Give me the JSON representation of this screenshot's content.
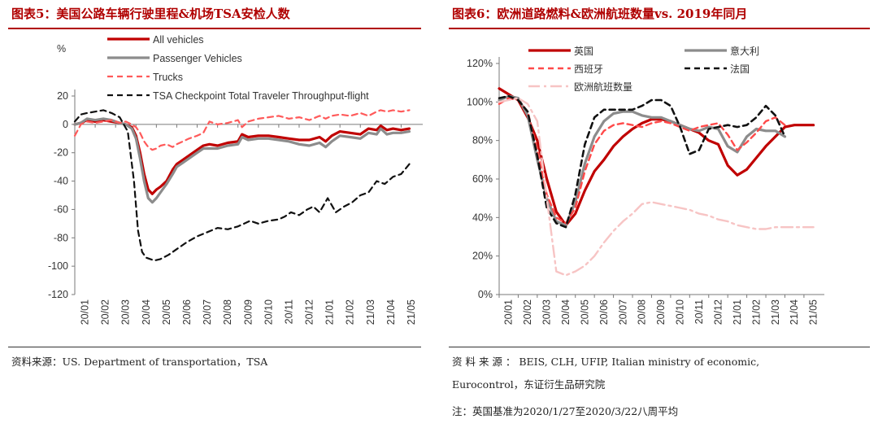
{
  "left": {
    "title": "图表5：美国公路车辆行驶里程&机场TSA安检人数",
    "unit_label": "%",
    "source": "资料来源：US. Department of transportation，TSA"
  },
  "right": {
    "title": "图表6：欧洲道路燃料&欧洲航班数量vs. 2019年同月",
    "source_line1": "资 料 来 源 ： BEIS, CLH, UFIP, Italian ministry of economic,",
    "source_line2": "Eurocontrol，东证衍生品研究院",
    "note": "注：英国基准为2020/1/27至2020/3/22八周平均"
  },
  "chart_data": [
    {
      "type": "line",
      "title": "图表5：美国公路车辆行驶里程&机场TSA安检人数",
      "ylabel": "%",
      "ylim": [
        -120,
        20
      ],
      "yticks": [
        20,
        0,
        -20,
        -40,
        -60,
        -80,
        -100,
        -120
      ],
      "x_ticklabels": [
        "20/01",
        "20/02",
        "20/03",
        "20/04",
        "20/05",
        "20/06",
        "20/07",
        "20/08",
        "20/09",
        "20/10",
        "20/11",
        "20/12",
        "21/01",
        "21/02",
        "21/03",
        "21/04",
        "21/05"
      ],
      "xlim": [
        0,
        16.9
      ],
      "legend_position": "top",
      "series": [
        {
          "name": "All vehicles",
          "color": "#c00000",
          "style": "solid",
          "width": 3.2,
          "x": [
            0,
            0.3,
            0.6,
            1.0,
            1.4,
            1.8,
            2.2,
            2.5,
            2.8,
            3.0,
            3.2,
            3.4,
            3.6,
            3.8,
            4.0,
            4.2,
            4.5,
            4.8,
            5.0,
            5.3,
            5.6,
            6.0,
            6.3,
            6.6,
            7.0,
            7.5,
            8.0,
            8.2,
            8.5,
            9.0,
            9.5,
            10.0,
            10.5,
            11.0,
            11.5,
            12.0,
            12.3,
            12.6,
            13.0,
            13.5,
            14.0,
            14.4,
            14.8,
            15.0,
            15.3,
            15.6,
            16.0,
            16.4
          ],
          "y": [
            0,
            1,
            3,
            2,
            3,
            2,
            1,
            0,
            -2,
            -8,
            -20,
            -35,
            -46,
            -49,
            -46,
            -44,
            -40,
            -32,
            -28,
            -25,
            -22,
            -18,
            -15,
            -14,
            -15,
            -13,
            -12,
            -7,
            -9,
            -8,
            -8,
            -9,
            -10,
            -11,
            -11,
            -9,
            -12,
            -8,
            -5,
            -6,
            -7,
            -3,
            -4,
            -1,
            -4,
            -3,
            -4,
            -3
          ]
        },
        {
          "name": "Passenger Vehicles",
          "color": "#8c8c8c",
          "style": "solid",
          "width": 3.2,
          "x": [
            0,
            0.3,
            0.6,
            1.0,
            1.4,
            1.8,
            2.2,
            2.5,
            2.8,
            3.0,
            3.2,
            3.4,
            3.6,
            3.8,
            4.0,
            4.2,
            4.5,
            4.8,
            5.0,
            5.3,
            5.6,
            6.0,
            6.3,
            6.6,
            7.0,
            7.5,
            8.0,
            8.2,
            8.5,
            9.0,
            9.5,
            10.0,
            10.5,
            11.0,
            11.5,
            12.0,
            12.3,
            12.6,
            13.0,
            13.5,
            14.0,
            14.4,
            14.8,
            15.0,
            15.3,
            15.6,
            16.0,
            16.4
          ],
          "y": [
            0,
            1,
            4,
            3,
            4,
            3,
            1,
            0,
            -3,
            -10,
            -24,
            -40,
            -52,
            -55,
            -52,
            -48,
            -42,
            -35,
            -30,
            -27,
            -24,
            -20,
            -17,
            -17,
            -17,
            -15,
            -14,
            -9,
            -11,
            -10,
            -10,
            -11,
            -12,
            -14,
            -15,
            -13,
            -16,
            -12,
            -8,
            -9,
            -10,
            -6,
            -7,
            -3,
            -7,
            -6,
            -6,
            -5
          ]
        },
        {
          "name": "Trucks",
          "color": "#ff5a5a",
          "style": "dashed",
          "width": 2.2,
          "x": [
            0,
            0.3,
            0.6,
            1.0,
            1.4,
            1.8,
            2.2,
            2.5,
            2.8,
            3.0,
            3.2,
            3.4,
            3.6,
            3.8,
            4.0,
            4.2,
            4.5,
            4.8,
            5.0,
            5.3,
            5.6,
            6.0,
            6.3,
            6.6,
            7.0,
            7.5,
            8.0,
            8.2,
            8.5,
            9.0,
            9.5,
            10.0,
            10.5,
            11.0,
            11.5,
            12.0,
            12.3,
            12.6,
            13.0,
            13.5,
            14.0,
            14.4,
            14.8,
            15.0,
            15.3,
            15.6,
            16.0,
            16.4
          ],
          "y": [
            -8,
            0,
            2,
            1,
            2,
            3,
            1,
            2,
            0,
            -2,
            -6,
            -12,
            -16,
            -18,
            -17,
            -15,
            -14,
            -16,
            -14,
            -12,
            -10,
            -8,
            -6,
            2,
            0,
            1,
            3,
            -2,
            2,
            4,
            5,
            6,
            4,
            5,
            3,
            6,
            4,
            6,
            7,
            6,
            8,
            6,
            9,
            10,
            9,
            10,
            9,
            10
          ]
        },
        {
          "name": "TSA Checkpoint Total Traveler Throughput-flight",
          "color": "#111111",
          "style": "dashed",
          "width": 2.2,
          "x": [
            0,
            0.3,
            0.6,
            1.0,
            1.4,
            1.8,
            2.2,
            2.6,
            2.9,
            3.1,
            3.3,
            3.5,
            3.7,
            3.9,
            4.2,
            4.6,
            5.0,
            5.5,
            6.0,
            6.5,
            7.0,
            7.5,
            8.0,
            8.3,
            8.6,
            9.0,
            9.5,
            10.0,
            10.3,
            10.6,
            11.0,
            11.4,
            11.7,
            12.0,
            12.4,
            12.8,
            13.2,
            13.6,
            14.0,
            14.4,
            14.8,
            15.2,
            15.6,
            16.0,
            16.4
          ],
          "y": [
            2,
            7,
            8,
            9,
            10,
            8,
            5,
            -5,
            -40,
            -75,
            -90,
            -94,
            -95,
            -96,
            -95,
            -92,
            -88,
            -83,
            -79,
            -76,
            -73,
            -74,
            -72,
            -70,
            -68,
            -70,
            -68,
            -67,
            -65,
            -62,
            -64,
            -60,
            -58,
            -62,
            -52,
            -62,
            -58,
            -55,
            -50,
            -48,
            -40,
            -42,
            -37,
            -35,
            -28
          ]
        }
      ]
    },
    {
      "type": "line",
      "title": "图表6：欧洲道路燃料&欧洲航班数量vs. 2019年同月",
      "ylim": [
        0,
        120
      ],
      "yticks": [
        "0%",
        "20%",
        "40%",
        "60%",
        "80%",
        "100%",
        "120%"
      ],
      "x_ticklabels": [
        "20/01",
        "20/02",
        "20/03",
        "20/04",
        "20/05",
        "20/06",
        "20/07",
        "20/08",
        "20/09",
        "20/10",
        "20/11",
        "20/12",
        "21/01",
        "21/02",
        "21/03",
        "21/04",
        "21/05"
      ],
      "xlim": [
        0,
        16.9
      ],
      "legend_position": "top",
      "series": [
        {
          "name": "英国",
          "color": "#c00000",
          "style": "solid",
          "width": 3.2,
          "x": [
            0,
            0.5,
            1,
            1.5,
            2,
            2.5,
            3,
            3.5,
            4,
            4.5,
            5,
            5.5,
            6,
            6.5,
            7,
            7.5,
            8,
            8.5,
            9,
            9.5,
            10,
            10.5,
            11,
            11.5,
            12,
            12.5,
            13,
            13.5,
            14,
            14.5,
            15,
            15.5,
            16,
            16.5
          ],
          "y": [
            107,
            104,
            101,
            92,
            80,
            60,
            43,
            36,
            42,
            54,
            64,
            70,
            77,
            82,
            86,
            89,
            91,
            91,
            90,
            88,
            86,
            84,
            80,
            78,
            67,
            62,
            65,
            71,
            77,
            82,
            87,
            88,
            88,
            88
          ]
        },
        {
          "name": "意大利",
          "color": "#8c8c8c",
          "style": "solid",
          "width": 3.2,
          "x": [
            0,
            0.5,
            1,
            1.5,
            2,
            2.5,
            3,
            3.5,
            4,
            4.5,
            5,
            5.5,
            6,
            6.5,
            7,
            7.5,
            8,
            8.5,
            9,
            9.5,
            10,
            10.5,
            11,
            11.5,
            12,
            12.5,
            13,
            13.5,
            14,
            14.5,
            15
          ],
          "y": [
            101,
            103,
            102,
            93,
            70,
            50,
            38,
            36,
            48,
            68,
            82,
            90,
            94,
            95,
            95,
            93,
            92,
            92,
            90,
            88,
            86,
            85,
            87,
            86,
            77,
            74,
            82,
            86,
            85,
            85,
            82
          ]
        },
        {
          "name": "西班牙",
          "color": "#ff4a4a",
          "style": "dashed",
          "width": 2.4,
          "x": [
            0,
            0.5,
            1,
            1.5,
            2,
            2.5,
            3,
            3.5,
            4,
            4.5,
            5,
            5.5,
            6,
            6.5,
            7,
            7.5,
            8,
            8.5,
            9,
            9.5,
            10,
            10.5,
            11,
            11.5,
            12,
            12.5,
            13,
            13.5,
            14,
            14.5,
            15
          ],
          "y": [
            99,
            102,
            101,
            95,
            75,
            52,
            40,
            37,
            45,
            64,
            78,
            85,
            88,
            89,
            88,
            87,
            89,
            90,
            89,
            87,
            85,
            87,
            88,
            89,
            83,
            75,
            79,
            84,
            90,
            92,
            88
          ]
        },
        {
          "name": "法国",
          "color": "#111111",
          "style": "dashed",
          "width": 2.6,
          "x": [
            0,
            0.5,
            1,
            1.5,
            2,
            2.5,
            3,
            3.5,
            4,
            4.5,
            5,
            5.5,
            6,
            6.5,
            7,
            7.5,
            8,
            8.5,
            9,
            9.5,
            10,
            10.5,
            11,
            11.5,
            12,
            12.5,
            13,
            13.5,
            14,
            14.5,
            15
          ],
          "y": [
            102,
            103,
            101,
            95,
            72,
            45,
            37,
            35,
            52,
            78,
            92,
            96,
            96,
            96,
            96,
            98,
            101,
            101,
            98,
            87,
            73,
            75,
            86,
            87,
            88,
            87,
            88,
            92,
            98,
            93,
            82
          ]
        },
        {
          "name": "欧洲航班数量",
          "color": "#f7c4c4",
          "style": "dashdot",
          "width": 2.4,
          "x": [
            0,
            0.5,
            1,
            1.5,
            2,
            2.5,
            3,
            3.5,
            4,
            4.5,
            5,
            5.5,
            6,
            6.5,
            7,
            7.5,
            8,
            8.5,
            9,
            9.5,
            10,
            10.5,
            11,
            11.5,
            12,
            12.5,
            13,
            13.5,
            14,
            14.5,
            15,
            15.5,
            16,
            16.5
          ],
          "y": [
            100,
            101,
            102,
            99,
            90,
            50,
            12,
            10,
            12,
            15,
            20,
            27,
            33,
            38,
            42,
            47,
            48,
            47,
            46,
            45,
            44,
            42,
            41,
            39,
            38,
            36,
            35,
            34,
            34,
            35,
            35,
            35,
            35,
            35
          ]
        }
      ]
    }
  ]
}
